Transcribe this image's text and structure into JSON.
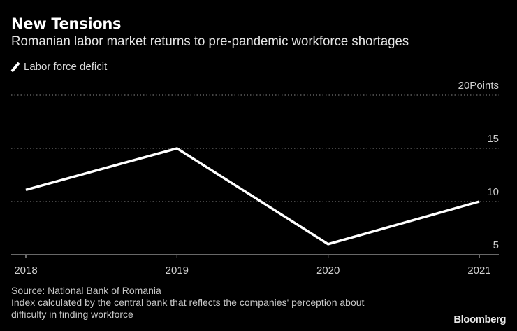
{
  "header": {
    "title": "New Tensions",
    "subtitle": "Romanian labor market returns to pre-pandemic workforce shortages"
  },
  "footer": {
    "source": "Source: National Bank of Romania",
    "note_line1": "Index calculated by the central bank that reflects the companies' perception about",
    "note_line2": "difficulty in finding workforce",
    "brand": "Bloomberg"
  },
  "chart_data": {
    "type": "line",
    "title": "New Tensions",
    "subtitle": "Romanian labor market returns to pre-pandemic workforce shortages",
    "categories": [
      "2018",
      "2019",
      "2020",
      "2021"
    ],
    "series": [
      {
        "name": "Labor force deficit",
        "values": [
          11.1,
          15.0,
          6.0,
          10.0
        ],
        "color": "#ffffff"
      }
    ],
    "ylim": [
      5,
      20
    ],
    "yticks": [
      5,
      10,
      15,
      20
    ],
    "ytick_labels": [
      "5",
      "10",
      "15",
      "20Points"
    ],
    "ylabel": "Points",
    "xlabel": "",
    "grid": true,
    "legend": "top-left"
  }
}
